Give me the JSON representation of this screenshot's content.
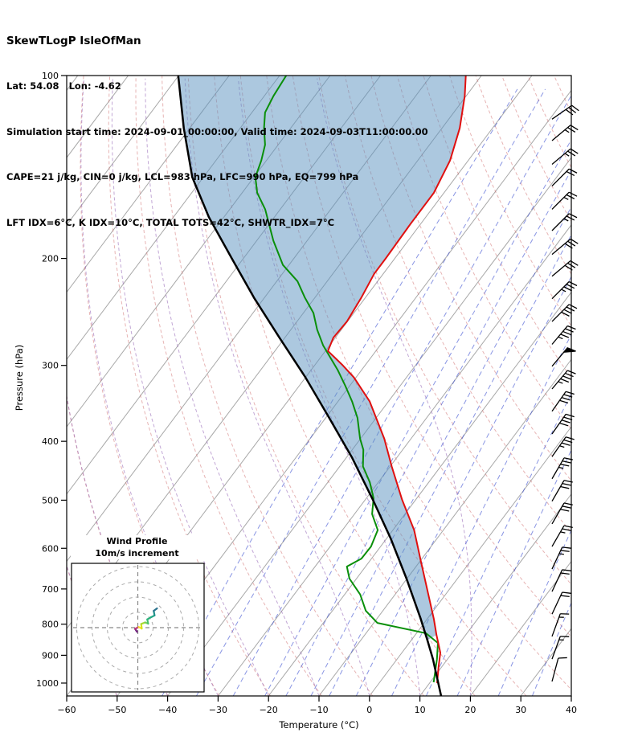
{
  "header": {
    "title": "SkewTLogP IsleOfMan",
    "coordinates": "Lat: 54.08   Lon: -4.62",
    "times": "Simulation start time: 2024-09-01_00:00:00, Valid time: 2024-09-03T11:00:00.00",
    "stability": "CAPE=21 j/kg, CIN=0 j/kg, LCL=983 hPa, LFC=990 hPa, EQ=799 hPa",
    "indices": "LFT IDX=6°C, K IDX=10°C, TOTAL TOTS=42°C, SHWTR_IDX=7°C"
  },
  "axes": {
    "x_label": "Temperature (°C)",
    "y_label": "Pressure (hPa)"
  },
  "inset": {
    "title1": "Wind Profile",
    "title2": "10m/s increment"
  },
  "chart_data": {
    "type": "skewt-logp",
    "title": "SkewTLogP IsleOfMan",
    "xlim": [
      -60,
      40
    ],
    "pressure_top": 100,
    "pressure_bottom": 1050,
    "skew": 0.75,
    "x_tick_values": [
      -60,
      -50,
      -40,
      -30,
      -20,
      -10,
      0,
      10,
      20,
      30,
      40
    ],
    "x_tick_labels": [
      "−60",
      "−50",
      "−40",
      "−30",
      "−20",
      "−10",
      "0",
      "10",
      "20",
      "30",
      "40"
    ],
    "y_tick_values": [
      100,
      200,
      300,
      400,
      500,
      600,
      700,
      800,
      900,
      1000
    ],
    "y_tick_labels": [
      "100",
      "200",
      "300",
      "400",
      "500",
      "600",
      "700",
      "800",
      "900",
      "1000"
    ],
    "temperature_c": [
      [
        1000,
        11.5
      ],
      [
        941,
        9.4
      ],
      [
        891,
        7.6
      ],
      [
        833,
        4.2
      ],
      [
        784,
        1.3
      ],
      [
        715,
        -3.4
      ],
      [
        633,
        -9.6
      ],
      [
        560,
        -15.8
      ],
      [
        499,
        -22.7
      ],
      [
        440,
        -29.7
      ],
      [
        396,
        -35.3
      ],
      [
        344,
        -43.7
      ],
      [
        314,
        -50.4
      ],
      [
        299,
        -54.7
      ],
      [
        284,
        -59.5
      ],
      [
        270,
        -60.4
      ],
      [
        254,
        -60.1
      ],
      [
        232,
        -60.8
      ],
      [
        212,
        -61.8
      ],
      [
        200,
        -61.8
      ],
      [
        176,
        -62.0
      ],
      [
        156,
        -62.0
      ],
      [
        138,
        -63.6
      ],
      [
        122,
        -66.5
      ],
      [
        108,
        -70.3
      ],
      [
        100,
        -73.1
      ]
    ],
    "dewpoint_c": [
      [
        997,
        10.7
      ],
      [
        913,
        7.9
      ],
      [
        859,
        5.7
      ],
      [
        828,
        1.9
      ],
      [
        796,
        -9.3
      ],
      [
        760,
        -13.4
      ],
      [
        715,
        -16.9
      ],
      [
        673,
        -21.4
      ],
      [
        643,
        -23.7
      ],
      [
        624,
        -22.0
      ],
      [
        596,
        -21.9
      ],
      [
        560,
        -23.0
      ],
      [
        527,
        -26.5
      ],
      [
        496,
        -28.6
      ],
      [
        467,
        -31.7
      ],
      [
        440,
        -35.4
      ],
      [
        413,
        -37.8
      ],
      [
        396,
        -40.1
      ],
      [
        366,
        -43.7
      ],
      [
        344,
        -47.2
      ],
      [
        324,
        -50.9
      ],
      [
        305,
        -54.8
      ],
      [
        278,
        -61.3
      ],
      [
        262,
        -64.8
      ],
      [
        246,
        -68.0
      ],
      [
        232,
        -72.0
      ],
      [
        218,
        -75.9
      ],
      [
        205,
        -81.2
      ],
      [
        187,
        -86.7
      ],
      [
        176,
        -89.9
      ],
      [
        166,
        -93.0
      ],
      [
        156,
        -97.0
      ],
      [
        147,
        -99.7
      ],
      [
        138,
        -101.0
      ],
      [
        130,
        -102.6
      ],
      [
        122,
        -105.3
      ],
      [
        115,
        -107.4
      ],
      [
        108,
        -108.2
      ],
      [
        100,
        -108.7
      ]
    ],
    "parcel_c": [
      [
        1050,
        14.2
      ],
      [
        913,
        7.1
      ],
      [
        850,
        3.2
      ],
      [
        784,
        -1.3
      ],
      [
        673,
        -10.1
      ],
      [
        578,
        -19.2
      ],
      [
        499,
        -28.5
      ],
      [
        426,
        -38.8
      ],
      [
        366,
        -49.3
      ],
      [
        314,
        -60.0
      ],
      [
        270,
        -71.1
      ],
      [
        232,
        -82.1
      ],
      [
        200,
        -92.3
      ],
      [
        171,
        -103.0
      ],
      [
        147,
        -112.2
      ],
      [
        122,
        -121.2
      ],
      [
        100,
        -130.1
      ]
    ],
    "fill_max_pressure": 852,
    "winds": [
      [
        118,
        30,
        55
      ],
      [
        128,
        25,
        50
      ],
      [
        140,
        25,
        50
      ],
      [
        152,
        20,
        45
      ],
      [
        166,
        25,
        45
      ],
      [
        180,
        25,
        45
      ],
      [
        197,
        30,
        50
      ],
      [
        214,
        30,
        50
      ],
      [
        233,
        35,
        45
      ],
      [
        254,
        40,
        45
      ],
      [
        277,
        45,
        40
      ],
      [
        301,
        50,
        40
      ],
      [
        328,
        45,
        40
      ],
      [
        357,
        40,
        35
      ],
      [
        389,
        40,
        35
      ],
      [
        424,
        35,
        35
      ],
      [
        461,
        35,
        30
      ],
      [
        502,
        30,
        30
      ],
      [
        547,
        30,
        30
      ],
      [
        596,
        25,
        30
      ],
      [
        649,
        25,
        25
      ],
      [
        707,
        20,
        25
      ],
      [
        770,
        20,
        25
      ],
      [
        838,
        15,
        20
      ],
      [
        913,
        15,
        20
      ],
      [
        994,
        10,
        15
      ]
    ],
    "hodograph": {
      "ring_increment_ms": 10,
      "rings_ms": [
        10,
        20,
        30,
        40
      ],
      "points_ms": [
        [
          -0.5,
          -2.8
        ],
        [
          -1.8,
          -0.8
        ],
        [
          0.6,
          0.4
        ],
        [
          2.6,
          -0.6
        ],
        [
          2.2,
          2.4
        ],
        [
          4.8,
          3.4
        ],
        [
          6.8,
          2.6
        ],
        [
          6.2,
          5.4
        ],
        [
          8.6,
          6.8
        ],
        [
          11,
          8
        ],
        [
          10.4,
          11
        ],
        [
          12.6,
          12.6
        ]
      ],
      "segment_colors": [
        "#721f81",
        "#b73779",
        "#fde725",
        "#d8e219",
        "#a8db34",
        "#74d055",
        "#4ac16d",
        "#2db27d",
        "#22a884",
        "#21918c",
        "#2c728e"
      ]
    },
    "background": {
      "isotherms_c": {
        "start": -160,
        "end": 40,
        "step": 10
      },
      "dry_adiabats_K": {
        "start": 220,
        "end": 440,
        "step": 10
      },
      "moist_adiabats_start_c": [
        -60,
        -50,
        -40,
        -30,
        -20,
        -10,
        0,
        10,
        20
      ],
      "mixing_ratio_gkg": [
        0.1,
        0.2,
        0.4,
        0.7,
        1,
        1.5,
        2,
        3,
        5,
        8,
        12,
        20,
        30
      ]
    },
    "colors": {
      "temperature_line": "#e01010",
      "dewpoint_line": "#0a8f0a",
      "parcel_line": "#000000",
      "cape_fill": "#5a92c0",
      "isotherm": "#a8a8a8",
      "dry_adiabat": "#cf6a6a",
      "moist_adiabat": "#8f5fb3",
      "mixing_ratio": "#3a4fd0",
      "wind_barb": "#000000"
    }
  }
}
